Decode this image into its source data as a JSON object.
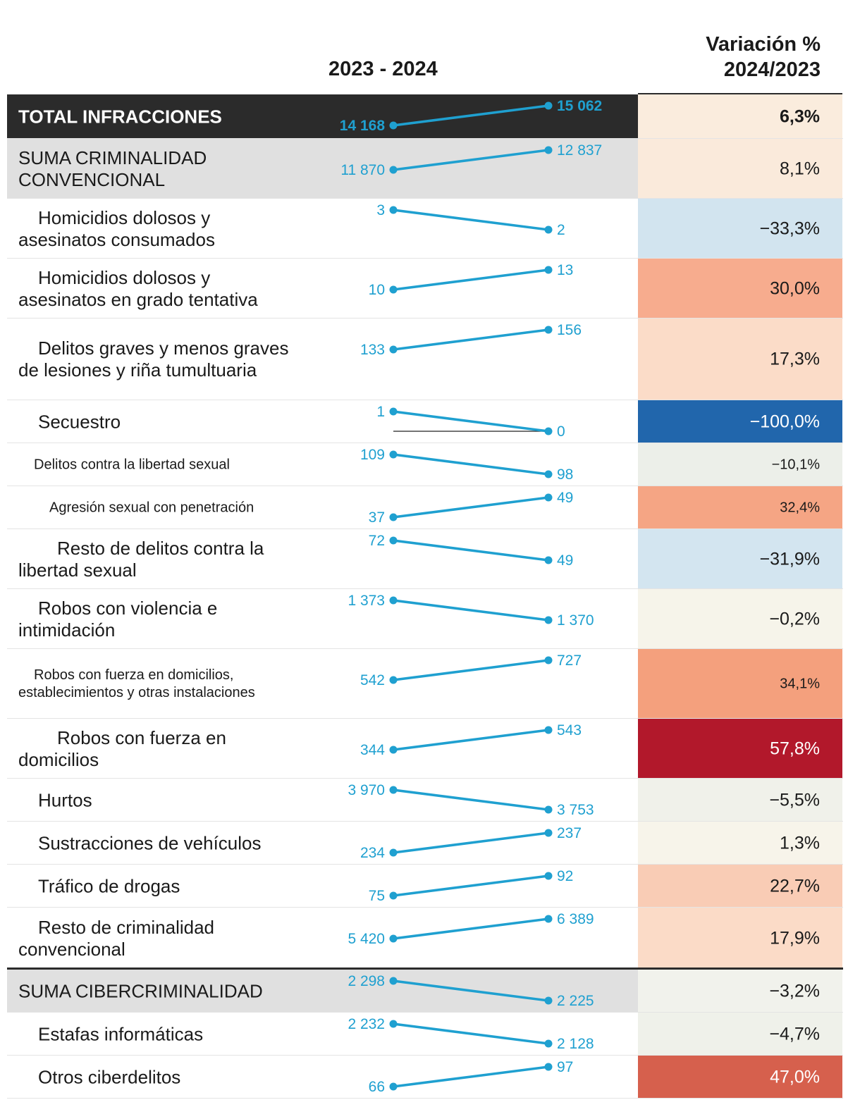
{
  "header": {
    "years": "2023 - 2024",
    "variation_line1": "Variación %",
    "variation_line2": "2024/2023"
  },
  "colors": {
    "slope": "#1fa0d0",
    "total_bg": "#2b2b2b",
    "group_bg": "#e0e0e0"
  },
  "chart_data": {
    "type": "slope",
    "title": "",
    "x": [
      "2023",
      "2024"
    ],
    "rows": [
      {
        "label": "TOTAL INFRACCIONES",
        "v2023": 14168,
        "v2024": 15062,
        "l2023": "14 168",
        "l2024": "15 062",
        "variation": "6,3%",
        "color": "#faecdd",
        "kind": "total"
      },
      {
        "label": "SUMA CRIMINALIDAD CONVENCIONAL",
        "v2023": 11870,
        "v2024": 12837,
        "l2023": "11 870",
        "l2024": "12 837",
        "variation": "8,1%",
        "color": "#faeadb",
        "kind": "group"
      },
      {
        "label": "Homicidios dolosos y asesinatos consumados",
        "v2023": 3,
        "v2024": 2,
        "l2023": "3",
        "l2024": "2",
        "variation": "−33,3%",
        "color": "#d2e4ef",
        "kind": "item"
      },
      {
        "label": "Homicidios dolosos y asesinatos en grado tentativa",
        "v2023": 10,
        "v2024": 13,
        "l2023": "10",
        "l2024": "13",
        "variation": "30,0%",
        "color": "#f7ac8e",
        "kind": "item"
      },
      {
        "label": "Delitos graves y menos graves de lesiones y riña tumultuaria",
        "v2023": 133,
        "v2024": 156,
        "l2023": "133",
        "l2024": "156",
        "variation": "17,3%",
        "color": "#fbdcc8",
        "kind": "item"
      },
      {
        "label": "Secuestro",
        "v2023": 1,
        "v2024": 0,
        "l2023": "1",
        "l2024": "0",
        "variation": "−100,0%",
        "color": "#2166ac",
        "kind": "item",
        "light": true
      },
      {
        "label": "Delitos contra la libertad sexual",
        "v2023": 109,
        "v2024": 98,
        "l2023": "109",
        "l2024": "98",
        "variation": "−10,1%",
        "color": "#ecefe9",
        "kind": "item-small"
      },
      {
        "label": "Agresión sexual con penetración",
        "v2023": 37,
        "v2024": 49,
        "l2023": "37",
        "l2024": "49",
        "variation": "32,4%",
        "color": "#f5a584",
        "kind": "item-small2"
      },
      {
        "label": "Resto de delitos contra la libertad sexual",
        "v2023": 72,
        "v2024": 49,
        "l2023": "72",
        "l2024": "49",
        "variation": "−31,9%",
        "color": "#d3e5f0",
        "kind": "item2"
      },
      {
        "label": "Robos con violencia e intimidación",
        "v2023": 1373,
        "v2024": 1370,
        "l2023": "1 373",
        "l2024": "1 370",
        "variation": "−0,2%",
        "color": "#f6f4ea",
        "kind": "item"
      },
      {
        "label": "Robos con fuerza en domicilios, establecimientos y otras instalaciones",
        "v2023": 542,
        "v2024": 727,
        "l2023": "542",
        "l2024": "727",
        "variation": "34,1%",
        "color": "#f4a07d",
        "kind": "item-small"
      },
      {
        "label": "Robos con fuerza en domicilios",
        "v2023": 344,
        "v2024": 543,
        "l2023": "344",
        "l2024": "543",
        "variation": "57,8%",
        "color": "#b2182b",
        "kind": "item2",
        "light": true
      },
      {
        "label": "Hurtos",
        "v2023": 3970,
        "v2024": 3753,
        "l2023": "3 970",
        "l2024": "3 753",
        "variation": "−5,5%",
        "color": "#f0f1ea",
        "kind": "item"
      },
      {
        "label": "Sustracciones de vehículos",
        "v2023": 234,
        "v2024": 237,
        "l2023": "234",
        "l2024": "237",
        "variation": "1,3%",
        "color": "#f7f4ea",
        "kind": "item"
      },
      {
        "label": "Tráfico de drogas",
        "v2023": 75,
        "v2024": 92,
        "l2023": "75",
        "l2024": "92",
        "variation": "22,7%",
        "color": "#f9ccb5",
        "kind": "item"
      },
      {
        "label": "Resto de criminalidad convencional",
        "v2023": 5420,
        "v2024": 6389,
        "l2023": "5 420",
        "l2024": "6 389",
        "variation": "17,9%",
        "color": "#fbdbc7",
        "kind": "item"
      },
      {
        "label": "SUMA CIBERCRIMINALIDAD",
        "v2023": 2298,
        "v2024": 2225,
        "l2023": "2 298",
        "l2024": "2 225",
        "variation": "−3,2%",
        "color": "#f1f2ec",
        "kind": "group"
      },
      {
        "label": "Estafas informáticas",
        "v2023": 2232,
        "v2024": 2128,
        "l2023": "2 232",
        "l2024": "2 128",
        "variation": "−4,7%",
        "color": "#eff1ea",
        "kind": "item"
      },
      {
        "label": "Otros ciberdelitos",
        "v2023": 66,
        "v2024": 97,
        "l2023": "66",
        "l2024": "97",
        "variation": "47,0%",
        "color": "#d6604d",
        "kind": "item",
        "light": true
      }
    ]
  }
}
